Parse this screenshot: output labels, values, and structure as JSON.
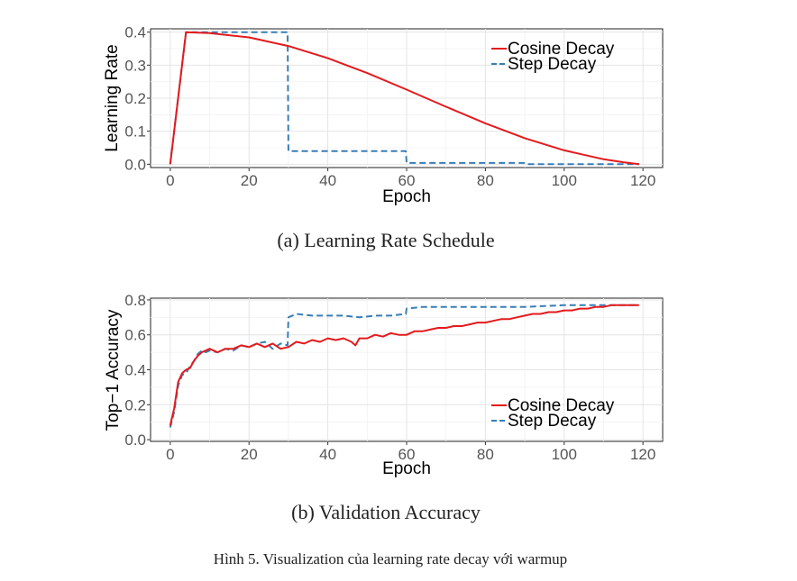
{
  "chart_data": [
    {
      "type": "line",
      "id": "a",
      "caption": "(a) Learning Rate Schedule",
      "xlabel": "Epoch",
      "ylabel": "Learning Rate",
      "xlim": [
        -5,
        125
      ],
      "ylim": [
        -0.01,
        0.41
      ],
      "xticks": [
        0,
        20,
        40,
        60,
        80,
        100,
        120
      ],
      "yticks": [
        0.0,
        0.1,
        0.2,
        0.3,
        0.4
      ],
      "ytick_labels": [
        "0.0",
        "0.1",
        "0.2",
        "0.3",
        "0.4"
      ],
      "grid": true,
      "legend_position": "top-right",
      "series": [
        {
          "name": "Cosine Decay",
          "color": "#e41a1c",
          "dash": "solid",
          "x": [
            0,
            4,
            10,
            20,
            30,
            40,
            50,
            60,
            70,
            80,
            90,
            100,
            110,
            115,
            119
          ],
          "y": [
            0.0,
            0.4,
            0.397,
            0.384,
            0.358,
            0.321,
            0.276,
            0.226,
            0.174,
            0.124,
            0.079,
            0.042,
            0.015,
            0.006,
            0.0
          ]
        },
        {
          "name": "Step Decay",
          "color": "#377eb8",
          "dash": "dashed",
          "x": [
            0,
            4,
            29.8,
            30,
            59.8,
            60,
            89.8,
            90,
            119
          ],
          "y": [
            0.0,
            0.4,
            0.4,
            0.04,
            0.04,
            0.004,
            0.004,
            0.0004,
            0.0004
          ]
        }
      ]
    },
    {
      "type": "line",
      "id": "b",
      "caption": "(b) Validation Accuracy",
      "xlabel": "Epoch",
      "ylabel": "Top−1 Accuracy",
      "xlim": [
        -5,
        125
      ],
      "ylim": [
        -0.01,
        0.81
      ],
      "xticks": [
        0,
        20,
        40,
        60,
        80,
        100,
        120
      ],
      "yticks": [
        0.0,
        0.2,
        0.4,
        0.6,
        0.8
      ],
      "ytick_labels": [
        "0.0",
        "0.2",
        "0.4",
        "0.6",
        "0.8"
      ],
      "grid": true,
      "legend_position": "bottom-right",
      "series": [
        {
          "name": "Cosine Decay",
          "color": "#e41a1c",
          "dash": "solid",
          "x": [
            0,
            1,
            2,
            3,
            4,
            5,
            6,
            7,
            8,
            9,
            10,
            12,
            14,
            16,
            18,
            20,
            22,
            24,
            26,
            28,
            30,
            32,
            34,
            36,
            38,
            40,
            42,
            44,
            46,
            47,
            48,
            50,
            52,
            54,
            56,
            58,
            60,
            62,
            64,
            66,
            68,
            70,
            72,
            74,
            76,
            78,
            80,
            82,
            84,
            86,
            88,
            90,
            92,
            94,
            96,
            98,
            100,
            102,
            104,
            106,
            108,
            110,
            112,
            114,
            116,
            118,
            119
          ],
          "y": [
            0.08,
            0.18,
            0.33,
            0.38,
            0.4,
            0.41,
            0.45,
            0.48,
            0.5,
            0.51,
            0.52,
            0.5,
            0.52,
            0.52,
            0.54,
            0.53,
            0.55,
            0.53,
            0.55,
            0.52,
            0.53,
            0.56,
            0.55,
            0.57,
            0.56,
            0.58,
            0.57,
            0.58,
            0.56,
            0.54,
            0.58,
            0.58,
            0.6,
            0.59,
            0.61,
            0.6,
            0.6,
            0.62,
            0.62,
            0.63,
            0.64,
            0.64,
            0.65,
            0.65,
            0.66,
            0.67,
            0.67,
            0.68,
            0.69,
            0.69,
            0.7,
            0.71,
            0.72,
            0.72,
            0.73,
            0.73,
            0.74,
            0.74,
            0.75,
            0.75,
            0.76,
            0.76,
            0.77,
            0.77,
            0.77,
            0.77,
            0.77
          ]
        },
        {
          "name": "Step Decay",
          "color": "#377eb8",
          "dash": "dashed",
          "x": [
            0,
            1,
            2,
            3,
            4,
            5,
            6,
            7,
            8,
            9,
            10,
            12,
            14,
            16,
            18,
            20,
            22,
            24,
            26,
            28,
            29.8,
            30,
            32,
            36,
            40,
            44,
            48,
            52,
            56,
            59.8,
            60,
            64,
            70,
            80,
            90,
            100,
            110,
            119
          ],
          "y": [
            0.07,
            0.16,
            0.31,
            0.37,
            0.38,
            0.42,
            0.45,
            0.49,
            0.51,
            0.5,
            0.51,
            0.5,
            0.52,
            0.51,
            0.54,
            0.53,
            0.55,
            0.56,
            0.52,
            0.55,
            0.54,
            0.7,
            0.72,
            0.71,
            0.71,
            0.71,
            0.7,
            0.71,
            0.71,
            0.72,
            0.75,
            0.76,
            0.76,
            0.76,
            0.76,
            0.77,
            0.77,
            0.77
          ]
        }
      ]
    }
  ],
  "figure_caption": "Hình 5. Visualization của learning rate decay với warmup"
}
